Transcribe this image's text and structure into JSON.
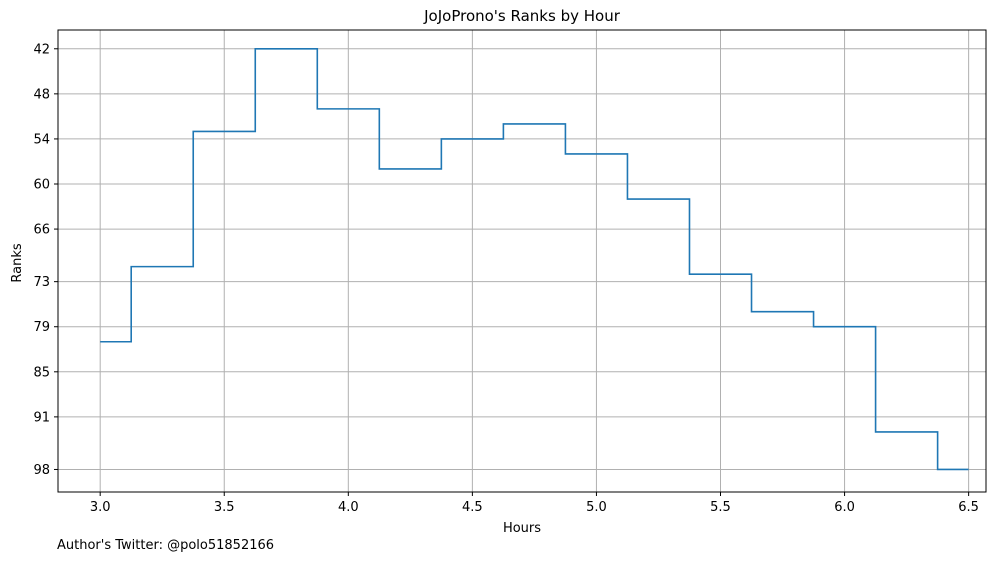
{
  "chart_data": {
    "type": "line",
    "drawstyle": "steps-mid",
    "title": "JoJoProno's Ranks by Hour",
    "xlabel": "Hours",
    "ylabel": "Ranks",
    "x": [
      3.0,
      3.25,
      3.5,
      3.75,
      4.0,
      4.25,
      4.5,
      4.75,
      5.0,
      5.25,
      5.5,
      5.75,
      6.0,
      6.25,
      6.5
    ],
    "series": [
      {
        "values": [
          81,
          71,
          53,
          42,
          50,
          58,
          54,
          52,
          56,
          62,
          72,
          77,
          79,
          93,
          98
        ],
        "color": "#1f77b4"
      }
    ],
    "xlim": [
      2.83,
      6.57
    ],
    "ylim": [
      101,
      39.5
    ],
    "y_inverted": true,
    "xticks": [
      3.0,
      3.5,
      4.0,
      4.5,
      5.0,
      5.5,
      6.0,
      6.5
    ],
    "xtick_labels": [
      "3.0",
      "3.5",
      "4.0",
      "4.5",
      "5.0",
      "5.5",
      "6.0",
      "6.5"
    ],
    "yticks": [
      42,
      48,
      54,
      60,
      66,
      73,
      79,
      85,
      91,
      98
    ],
    "ytick_labels": [
      "42",
      "48",
      "54",
      "60",
      "66",
      "73",
      "79",
      "85",
      "91",
      "98"
    ],
    "grid": true,
    "grid_color": "#b0b0b0"
  },
  "footer": {
    "text": "Author's Twitter: @polo51852166"
  }
}
